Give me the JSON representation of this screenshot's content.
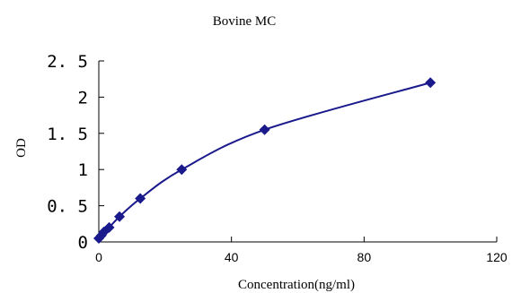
{
  "chart_data": {
    "type": "scatter",
    "title": "Bovine MC",
    "xlabel": "Concentration(ng/ml)",
    "ylabel": "OD",
    "xlim": [
      0,
      120
    ],
    "ylim": [
      0,
      2.5
    ],
    "xticks": [
      "0",
      "40",
      "80",
      "120"
    ],
    "yticks": [
      "0",
      "0. 5",
      "1",
      "1. 5",
      "2",
      "2. 5"
    ],
    "grid": false,
    "legend": "none",
    "marker": "diamond",
    "color": "#1a1a8c",
    "series": [
      {
        "x": [
          0,
          0.78,
          1.56,
          3.12,
          6.25,
          12.5,
          25,
          50,
          100
        ],
        "y": [
          0.05,
          0.09,
          0.14,
          0.2,
          0.35,
          0.6,
          1.0,
          1.55,
          2.2
        ],
        "fit_line": true
      }
    ]
  }
}
